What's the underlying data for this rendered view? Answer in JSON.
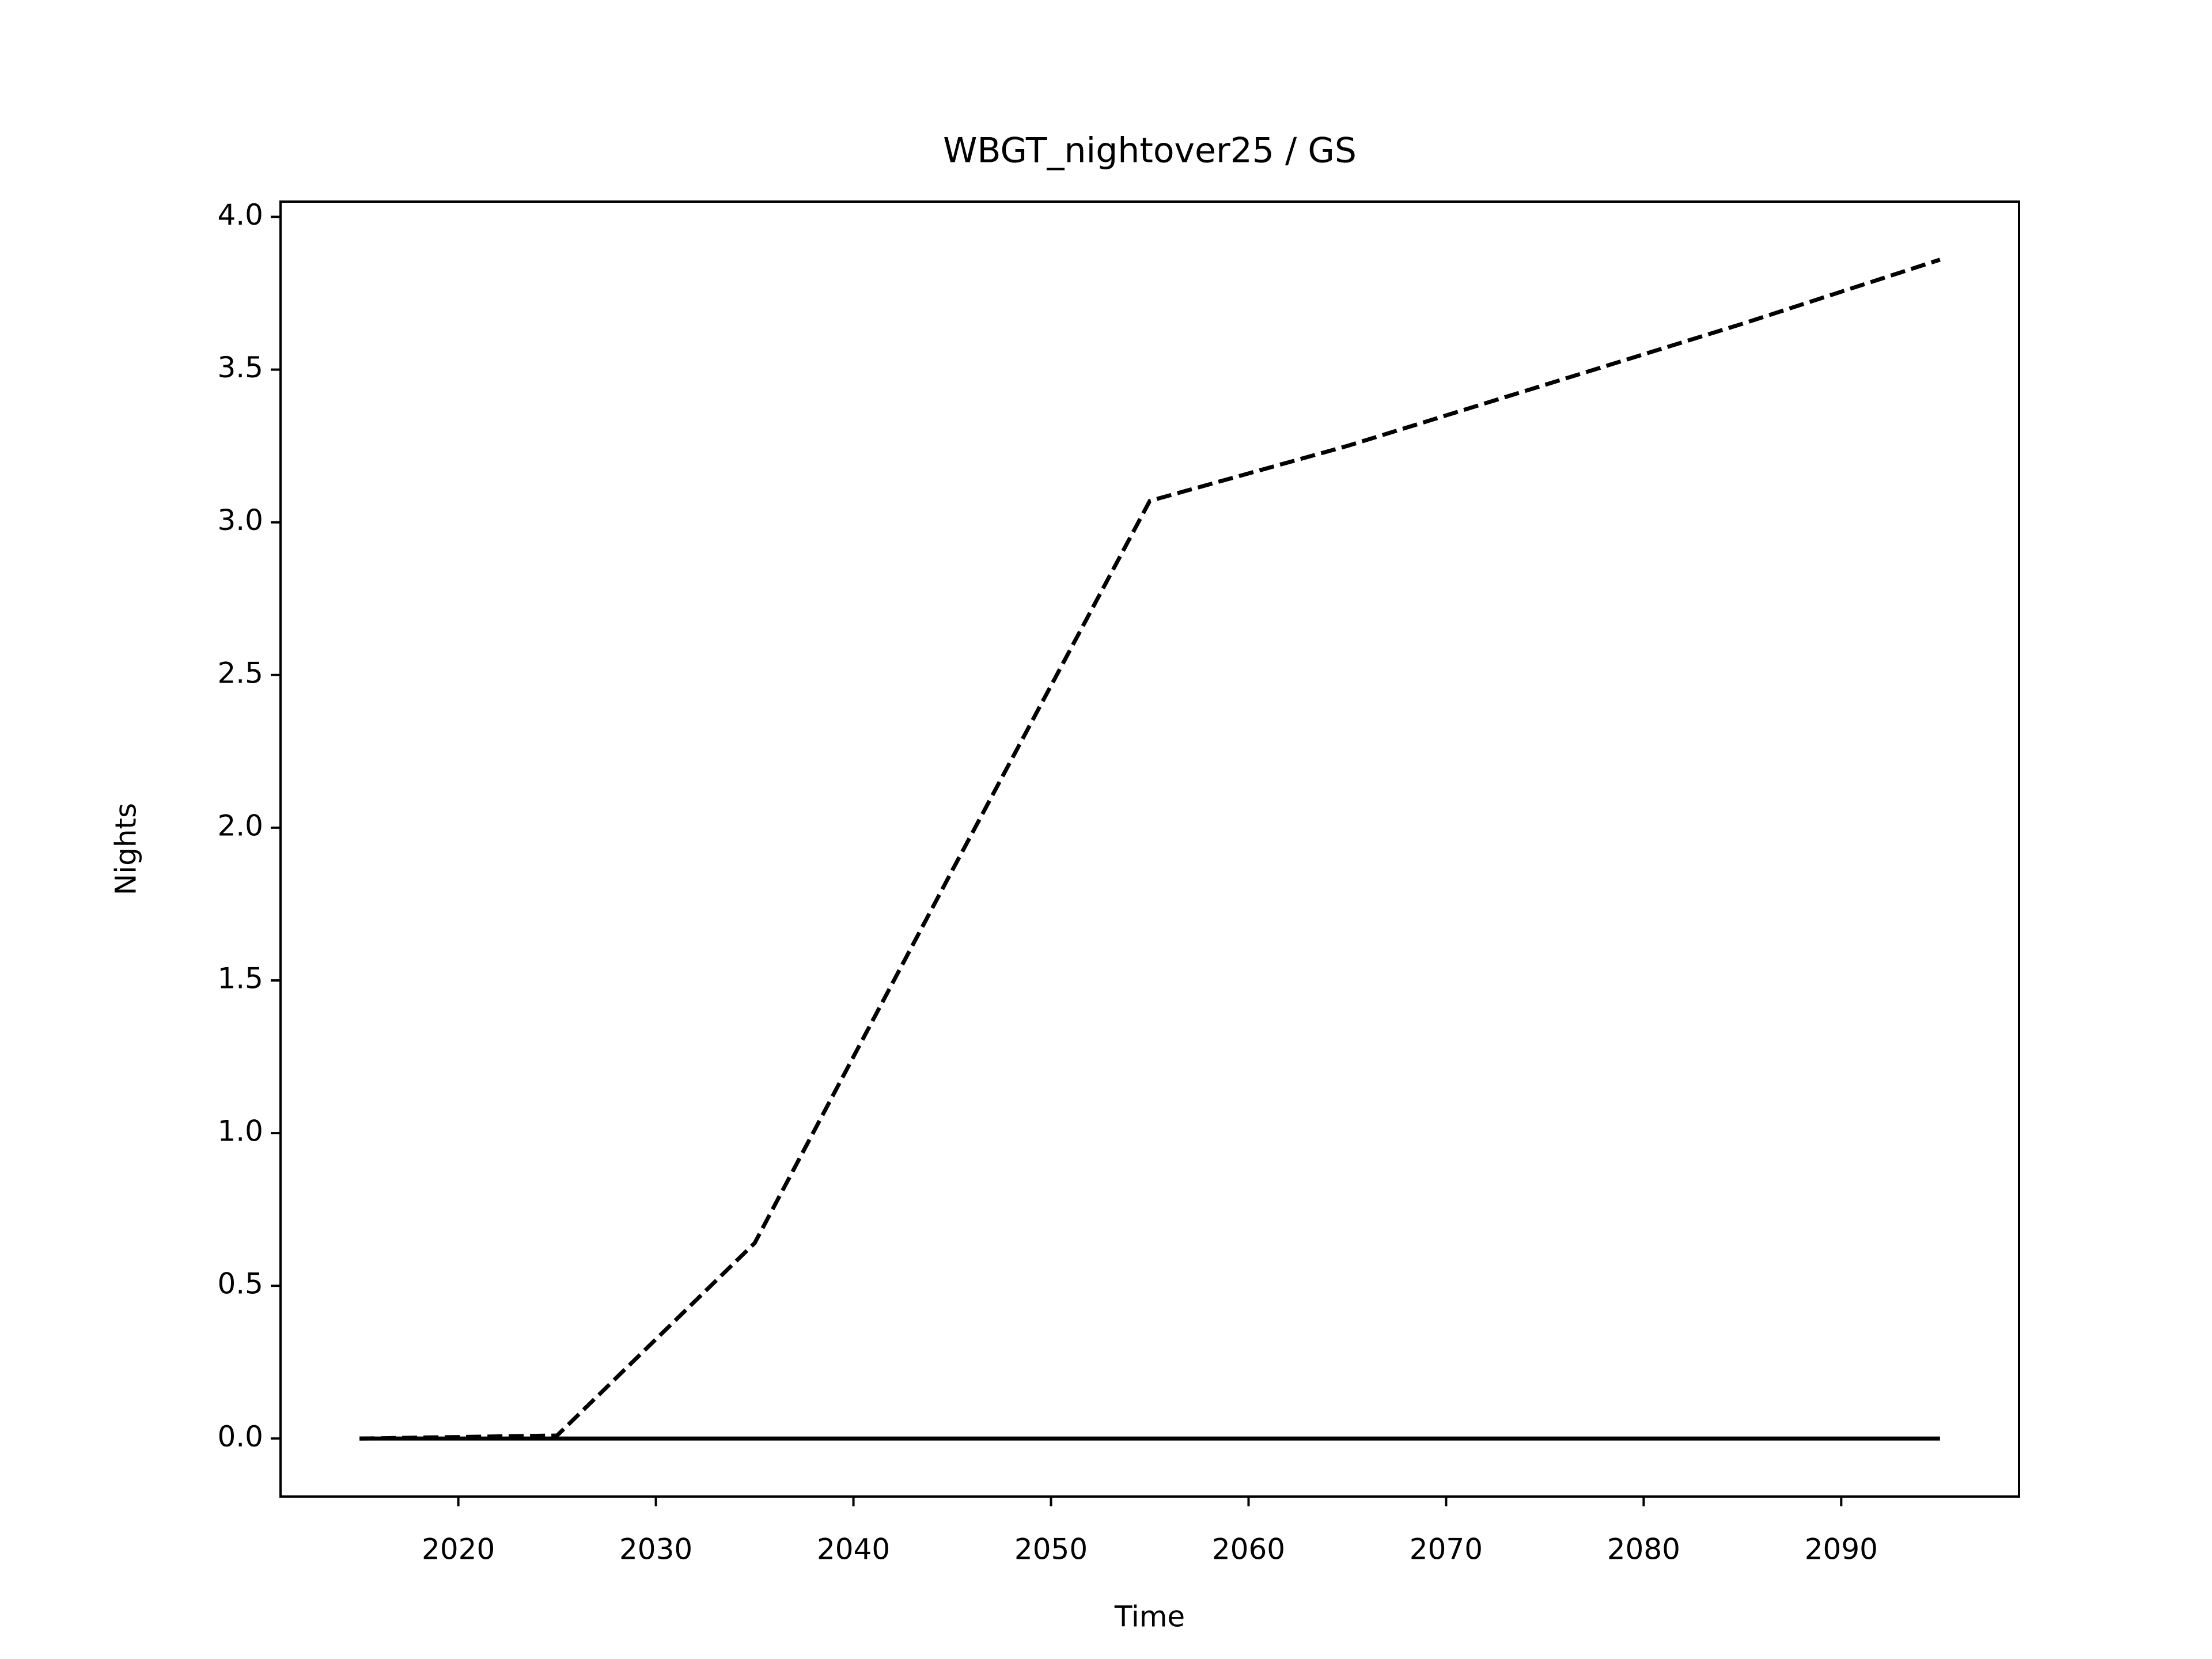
{
  "chart_data": {
    "type": "line",
    "title": "WBGT_nightover25 / GS",
    "x_label": "Time",
    "y_label": "Nights",
    "x": [
      2015,
      2025,
      2035,
      2045,
      2055,
      2065,
      2075,
      2085,
      2095
    ],
    "series": [
      {
        "color": "#000000",
        "linestyle": "dashed",
        "values": [
          0,
          0.01,
          0.64,
          1.86,
          3.07,
          3.25,
          3.45,
          3.65,
          3.86
        ]
      },
      {
        "color": "#000000",
        "linestyle": "solid",
        "values": [
          0,
          0,
          0,
          0,
          0,
          0,
          0,
          0,
          0
        ]
      }
    ],
    "xlim": [
      2011,
      2099
    ],
    "ylim": [
      -0.19,
      4.05
    ],
    "xticks": [
      2020,
      2030,
      2040,
      2050,
      2060,
      2070,
      2080,
      2090
    ],
    "yticks": [
      {
        "value": 0,
        "label": "0.0"
      },
      {
        "value": 0.5,
        "label": "0.5"
      },
      {
        "value": 1,
        "label": "1.0"
      },
      {
        "value": 1.5,
        "label": "1.5"
      },
      {
        "value": 2,
        "label": "2.0"
      },
      {
        "value": 2.5,
        "label": "2.5"
      },
      {
        "value": 3,
        "label": "3.0"
      },
      {
        "value": 3.5,
        "label": "3.5"
      },
      {
        "value": 4,
        "label": "4.0"
      }
    ],
    "grid": false
  }
}
